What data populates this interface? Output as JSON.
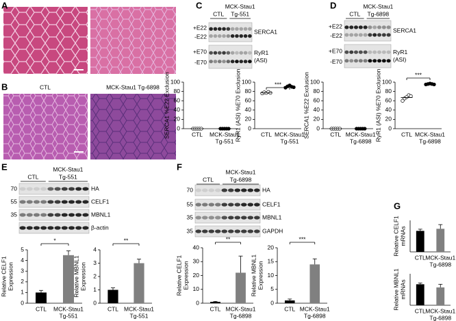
{
  "panels": [
    "A",
    "B",
    "C",
    "D",
    "E",
    "F",
    "G"
  ],
  "histology": {
    "B": {
      "labels": [
        "CTL",
        "MCK-Stau1 Tg-6898"
      ]
    }
  },
  "blots": {
    "C": {
      "groups": [
        [
          "CTL"
        ],
        [
          "MCK-Stau1",
          "Tg-551"
        ]
      ],
      "rows": [
        {
          "left": [
            "+E22",
            "-E22"
          ],
          "right": [
            "SERCA1"
          ]
        },
        {
          "left": [
            "+E70",
            "-E70"
          ],
          "right": [
            "RyR1",
            "(ASI)"
          ]
        }
      ]
    },
    "D": {
      "groups": [
        [
          "CTL"
        ],
        [
          "MCK-Stau1",
          "Tg-6898"
        ]
      ],
      "rows": [
        {
          "left": [
            "+E22",
            "-E22"
          ],
          "right": [
            "SERCA1"
          ]
        },
        {
          "left": [
            "+E70",
            "-E70"
          ],
          "right": [
            "RyR1",
            "(ASI)"
          ]
        }
      ]
    },
    "E": {
      "groups": [
        [
          "CTL"
        ],
        [
          "MCK-Stau1",
          "Tg-551"
        ]
      ],
      "rows": [
        {
          "left": [
            "70"
          ],
          "right": [
            "HA"
          ]
        },
        {
          "left": [
            "55"
          ],
          "right": [
            "CELF1"
          ]
        },
        {
          "left": [
            "35"
          ],
          "right": [
            "MBNL1"
          ]
        },
        {
          "left": [],
          "right": [
            "β-actin"
          ]
        }
      ]
    },
    "F": {
      "groups": [
        [
          "CTL"
        ],
        [
          "MCK-Stau1",
          "Tg-6898"
        ]
      ],
      "rows": [
        {
          "left": [
            "70"
          ],
          "right": [
            "HA"
          ]
        },
        {
          "left": [
            "55"
          ],
          "right": [
            "CELF1"
          ]
        },
        {
          "left": [
            "35"
          ],
          "right": [
            "MBNL1"
          ]
        },
        {
          "left": [
            "35"
          ],
          "right": [
            "GAPDH"
          ]
        }
      ]
    }
  },
  "chart_data": [
    {
      "type": "dot",
      "ylabel": [
        "SERCA1 %E22 Exclusion"
      ],
      "categories": [
        [
          "CTL"
        ],
        [
          "MCK-Stau1",
          "Tg-551"
        ]
      ],
      "points": [
        [
          0,
          0,
          0,
          0,
          0
        ],
        [
          0,
          0,
          0,
          0,
          0
        ]
      ],
      "means": [
        0,
        0
      ],
      "ylim": [
        0,
        100
      ],
      "yticks": [
        0,
        20,
        40,
        60,
        80,
        100
      ]
    },
    {
      "type": "dot",
      "ylabel": [
        "RyR1 (ASI) %E70 Exclusion"
      ],
      "categories": [
        [
          "CTL"
        ],
        [
          "MCK-Stau1",
          "Tg-551"
        ]
      ],
      "points": [
        [
          76,
          78,
          77,
          79,
          77
        ],
        [
          88,
          91,
          93,
          90,
          89
        ]
      ],
      "means": [
        77,
        90
      ],
      "ylim": [
        0,
        100
      ],
      "yticks": [
        0,
        20,
        40,
        60,
        80,
        100
      ],
      "significance": "***"
    },
    {
      "type": "dot",
      "ylabel": [
        "SERCA1 %E22 Exclusion"
      ],
      "categories": [
        [
          "CTL"
        ],
        [
          "MCK-Stau1",
          "Tg-6898"
        ]
      ],
      "points": [
        [
          0,
          0,
          0,
          0,
          0
        ],
        [
          0,
          0,
          0,
          0,
          0
        ]
      ],
      "means": [
        0,
        0
      ],
      "ylim": [
        0,
        100
      ],
      "yticks": [
        0,
        20,
        40,
        60,
        80,
        100
      ]
    },
    {
      "type": "dot",
      "ylabel": [
        "RyR1 (ASI) %E70 Exclusion"
      ],
      "categories": [
        [
          "CTL"
        ],
        [
          "MCK-Stau1",
          "Tg-6898"
        ]
      ],
      "points": [
        [
          60,
          65,
          68,
          72,
          70
        ],
        [
          95,
          96,
          97,
          96,
          95
        ]
      ],
      "means": [
        67,
        96
      ],
      "ylim": [
        0,
        100
      ],
      "yticks": [
        0,
        20,
        40,
        60,
        80,
        100
      ],
      "significance": "***"
    },
    {
      "type": "bar",
      "ylabel": [
        "Relative CELF1",
        "Expression"
      ],
      "categories": [
        [
          "CTL"
        ],
        [
          "MCK-Stau1",
          "Tg-551"
        ]
      ],
      "values": [
        1,
        4.5
      ],
      "errors": [
        0.2,
        0.4
      ],
      "colors": [
        "#000000",
        "#808080"
      ],
      "ylim": [
        0,
        5
      ],
      "yticks": [
        0,
        1,
        2,
        3,
        4,
        5
      ],
      "significance": "*"
    },
    {
      "type": "bar",
      "ylabel": [
        "Relative MBNL1",
        "Expression"
      ],
      "categories": [
        [
          "CTL"
        ],
        [
          "MCK-Stau1",
          "Tg-551"
        ]
      ],
      "values": [
        1,
        3
      ],
      "errors": [
        0.15,
        0.3
      ],
      "colors": [
        "#000000",
        "#808080"
      ],
      "ylim": [
        0,
        4
      ],
      "yticks": [
        0,
        1,
        2,
        3,
        4
      ],
      "significance": "**"
    },
    {
      "type": "bar",
      "ylabel": [
        "Relative CELF1",
        "Expression"
      ],
      "categories": [
        [
          "CTL"
        ],
        [
          "MCK-Stau1",
          "Tg-6898"
        ]
      ],
      "values": [
        1,
        22
      ],
      "errors": [
        0.3,
        12
      ],
      "colors": [
        "#000000",
        "#808080"
      ],
      "ylim": [
        0,
        40
      ],
      "yticks": [
        0,
        10,
        20,
        30,
        40
      ],
      "significance": "**"
    },
    {
      "type": "bar",
      "ylabel": [
        "Relative MBNL1",
        "Expression"
      ],
      "categories": [
        [
          "CTL"
        ],
        [
          "MCK-Stau1",
          "Tg-6898"
        ]
      ],
      "values": [
        1,
        14
      ],
      "errors": [
        0.5,
        2
      ],
      "colors": [
        "#000000",
        "#808080"
      ],
      "ylim": [
        0,
        20
      ],
      "yticks": [
        0,
        5,
        10,
        15,
        20
      ],
      "significance": "***"
    },
    {
      "type": "bar",
      "ylabel": [
        "Relative CELF1",
        "mRNAs"
      ],
      "categories": [
        [
          "CTL"
        ],
        [
          "MCK-Stau1",
          "Tg-6898"
        ]
      ],
      "values": [
        1,
        1.1
      ],
      "errors": [
        0.08,
        0.2
      ],
      "colors": [
        "#000000",
        "#808080"
      ],
      "ylim": [
        0,
        1.5
      ]
    },
    {
      "type": "bar",
      "ylabel": [
        "Relative MBNL1",
        "mRNAs"
      ],
      "categories": [
        [
          "CTL"
        ],
        [
          "MCK-Stau1",
          "Tg-6898"
        ]
      ],
      "values": [
        1,
        0.85
      ],
      "errors": [
        0.06,
        0.15
      ],
      "colors": [
        "#000000",
        "#808080"
      ],
      "ylim": [
        0,
        1.5
      ]
    }
  ]
}
